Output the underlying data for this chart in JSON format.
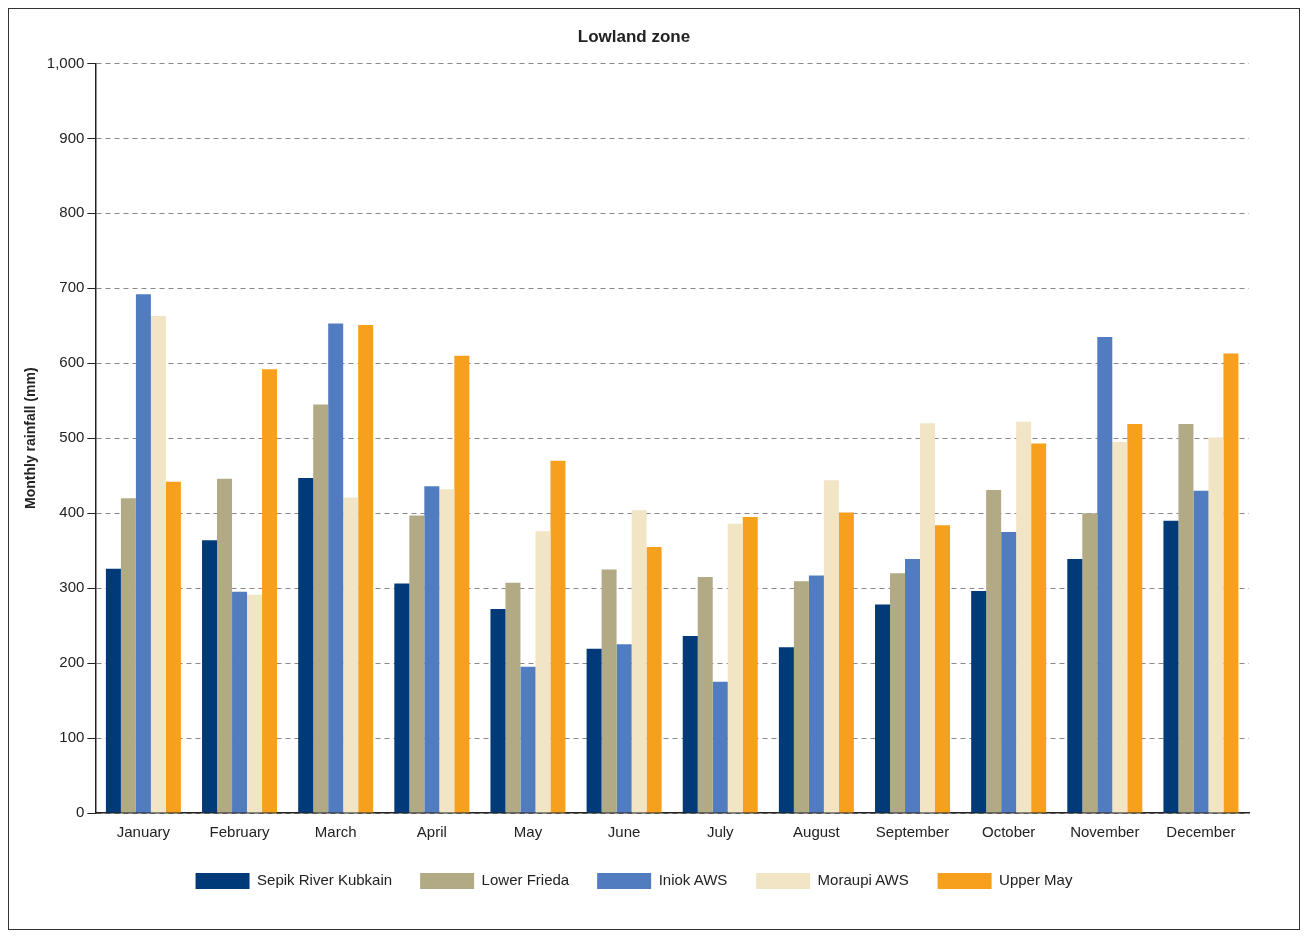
{
  "chart_data": {
    "type": "bar",
    "title": "Lowland zone",
    "ylabel": "Monthly rainfall (mm)",
    "categories": [
      "January",
      "February",
      "March",
      "April",
      "May",
      "June",
      "July",
      "August",
      "September",
      "October",
      "November",
      "December"
    ],
    "series": [
      {
        "name": "Sepik River Kubkain",
        "color": "#003a78",
        "values": [
          326,
          364,
          447,
          306,
          272,
          219,
          236,
          221,
          278,
          296,
          339,
          390
        ]
      },
      {
        "name": "Lower Frieda",
        "color": "#b2aa84",
        "values": [
          420,
          446,
          545,
          397,
          307,
          325,
          315,
          309,
          320,
          431,
          400,
          519
        ]
      },
      {
        "name": "Iniok AWS",
        "color": "#527cc0",
        "values": [
          692,
          295,
          653,
          436,
          195,
          225,
          175,
          317,
          339,
          375,
          635,
          430
        ]
      },
      {
        "name": "Moraupi AWS",
        "color": "#f2e5c6",
        "values": [
          663,
          291,
          421,
          432,
          376,
          404,
          386,
          444,
          520,
          522,
          495,
          501
        ]
      },
      {
        "name": "Upper May",
        "color": "#f6a01e",
        "values": [
          442,
          592,
          651,
          610,
          470,
          355,
          395,
          401,
          384,
          493,
          519,
          613
        ]
      }
    ],
    "ylim": [
      0,
      1000
    ],
    "yticks": [
      0,
      100,
      200,
      300,
      400,
      500,
      600,
      700,
      800,
      900,
      {
        "value": 1000,
        "label": "1,000"
      }
    ],
    "grid": "y",
    "legend": "bottom"
  }
}
